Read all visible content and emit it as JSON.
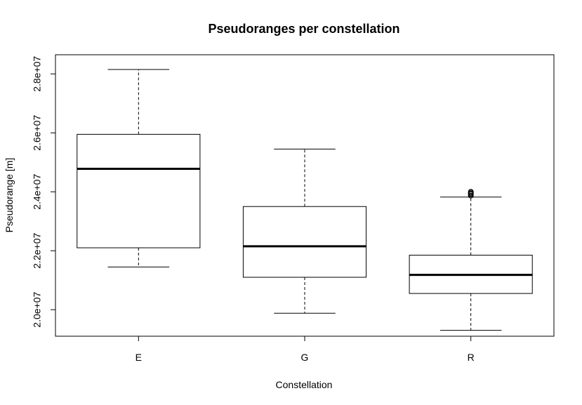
{
  "chart_data": {
    "type": "boxplot",
    "title": "Pseudoranges per constellation",
    "xlabel": "Constellation",
    "ylabel": "Pseudorange [m]",
    "ylim": [
      19100000,
      28650000
    ],
    "y_ticks": [
      20000000,
      22000000,
      24000000,
      26000000,
      28000000
    ],
    "y_tick_labels": [
      "2.0e+07",
      "2.2e+07",
      "2.4e+07",
      "2.6e+07",
      "2.8e+07"
    ],
    "categories": [
      "E",
      "G",
      "R"
    ],
    "boxes": [
      {
        "category": "E",
        "whisker_low": 21450000,
        "q1": 22100000,
        "median": 24780000,
        "q3": 25950000,
        "whisker_high": 28150000,
        "outliers": []
      },
      {
        "category": "G",
        "whisker_low": 19880000,
        "q1": 21100000,
        "median": 22150000,
        "q3": 23500000,
        "whisker_high": 25450000,
        "outliers": []
      },
      {
        "category": "R",
        "whisker_low": 19300000,
        "q1": 20550000,
        "median": 21180000,
        "q3": 21850000,
        "whisker_high": 23820000,
        "outliers": [
          23870000,
          23910000,
          23940000,
          23970000,
          24000000
        ]
      }
    ],
    "grid": false,
    "legend": "none",
    "colors": {
      "stroke": "#000000",
      "box_fill": "#ffffff"
    }
  }
}
